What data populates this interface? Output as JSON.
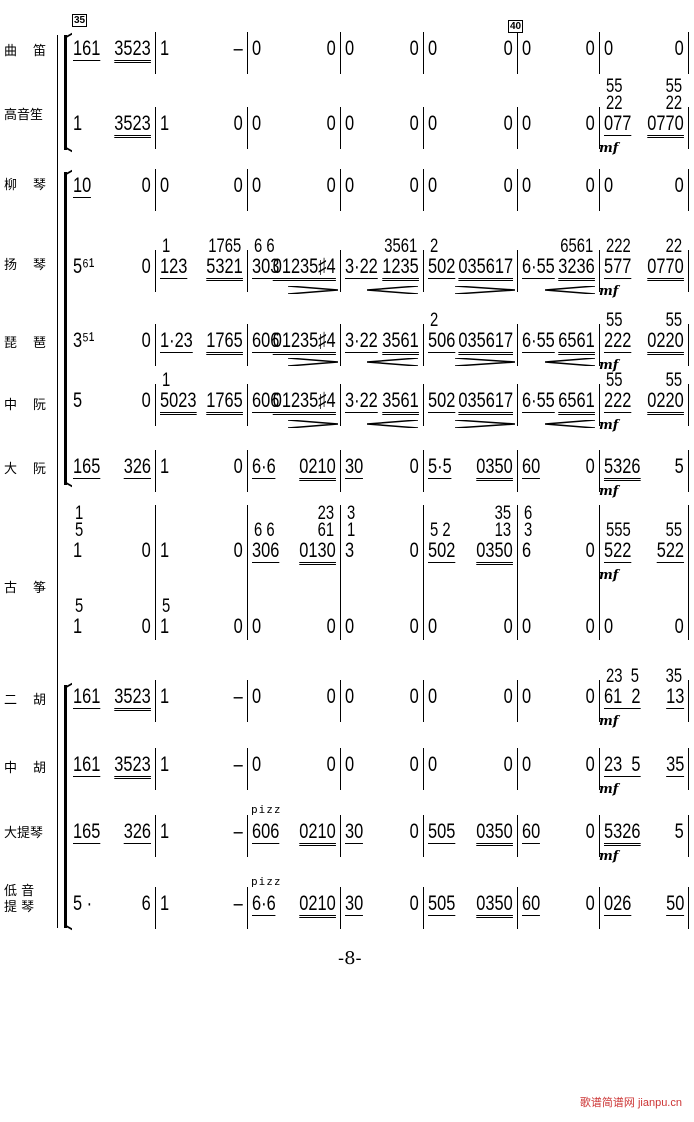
{
  "rehearsal_marks": [
    "35",
    "40"
  ],
  "page_number": "-8-",
  "watermark": {
    "cn": "歌谱简谱网",
    "url": "jianpu.cn"
  },
  "dynamic": "mf",
  "pizz": "pizz",
  "rows": [
    {
      "label": [
        "曲",
        "笛"
      ],
      "measures": [
        [
          "161",
          "3523"
        ],
        [
          "1",
          "–"
        ],
        [
          "0",
          "0"
        ],
        [
          "0",
          "0"
        ],
        [
          "0",
          "0"
        ],
        [
          "0",
          "0"
        ],
        [
          "0",
          "0"
        ]
      ]
    },
    {
      "label": [
        "高音笙"
      ],
      "measures": [
        [
          "1",
          "3523"
        ],
        [
          "1",
          "0"
        ],
        [
          "0",
          "0"
        ],
        [
          "0",
          "0"
        ],
        [
          "0",
          "0"
        ],
        [
          "0",
          "0"
        ],
        [
          "077",
          "0770"
        ]
      ],
      "upper": {
        "6": [
          "55\n22",
          "55\n22"
        ]
      },
      "mf": [
        6
      ]
    },
    {
      "label": [
        "柳",
        "琴"
      ],
      "measures": [
        [
          "10",
          "0"
        ],
        [
          "0",
          "0"
        ],
        [
          "0",
          "0"
        ],
        [
          "0",
          "0"
        ],
        [
          "0",
          "0"
        ],
        [
          "0",
          "0"
        ],
        [
          "0",
          "0"
        ]
      ]
    },
    {
      "label": [
        "扬",
        "琴"
      ],
      "measures": [
        [
          "5⁶¹",
          "0"
        ],
        [
          "123",
          "5321"
        ],
        [
          "303",
          "01235♯4"
        ],
        [
          "3·22",
          "1235"
        ],
        [
          "502",
          "035617"
        ],
        [
          "6·55",
          "3236"
        ],
        [
          "577",
          "0770"
        ]
      ],
      "upper": {
        "1": [
          "1",
          "1765"
        ],
        "2": [
          "6 6",
          ""
        ],
        "3": [
          "",
          "3561"
        ],
        "4": [
          "2",
          ""
        ],
        "5": [
          "",
          "6561"
        ],
        "6": [
          "222",
          "22"
        ]
      },
      "mf": [
        6
      ]
    },
    {
      "label": [
        "琵",
        "琶"
      ],
      "measures": [
        [
          "3⁵¹",
          "0"
        ],
        [
          "1·23",
          "1765"
        ],
        [
          "606",
          "01235♯4"
        ],
        [
          "3·22",
          "3561"
        ],
        [
          "506",
          "035617"
        ],
        [
          "6·55",
          "6561"
        ],
        [
          "222",
          "0220"
        ]
      ],
      "upper": {
        "4": [
          "2",
          ""
        ],
        "6": [
          "55",
          "55"
        ]
      },
      "mf": [
        6
      ]
    },
    {
      "label": [
        "中",
        "阮"
      ],
      "measures": [
        [
          "5",
          "0"
        ],
        [
          "5023",
          "1765"
        ],
        [
          "606",
          "01235♯4"
        ],
        [
          "3·22",
          "3561"
        ],
        [
          "502",
          "035617"
        ],
        [
          "6·55",
          "6561"
        ],
        [
          "222",
          "0220"
        ]
      ],
      "upper": {
        "1": [
          "1",
          ""
        ],
        "6": [
          "55",
          "55"
        ]
      },
      "mf": [
        6
      ]
    },
    {
      "label": [
        "大",
        "阮"
      ],
      "measures": [
        [
          "165",
          "326"
        ],
        [
          "1",
          "0"
        ],
        [
          "6·6",
          "0210"
        ],
        [
          "30",
          "0"
        ],
        [
          "5·5",
          "0350"
        ],
        [
          "60",
          "0"
        ],
        [
          "5326",
          "5"
        ]
      ],
      "mf": [
        6
      ]
    },
    {
      "label": [
        "古",
        "筝"
      ],
      "measures": [
        [
          "1",
          "0"
        ],
        [
          "1",
          "0"
        ],
        [
          "306",
          "0130"
        ],
        [
          "3",
          "0"
        ],
        [
          "502",
          "0350"
        ],
        [
          "6",
          "0"
        ],
        [
          "522",
          "522"
        ]
      ],
      "upper": {
        "0": [
          "1\n5",
          ""
        ],
        "2": [
          "6 6",
          "23\n61"
        ],
        "3": [
          "3\n1",
          ""
        ],
        "4": [
          "5 2",
          "35\n13"
        ],
        "5": [
          "6\n3",
          ""
        ],
        "6": [
          "555",
          "55"
        ]
      },
      "mf": [
        6
      ]
    },
    {
      "label": [],
      "measures": [
        [
          "1",
          "0"
        ],
        [
          "1",
          "0"
        ],
        [
          "0",
          "0"
        ],
        [
          "0",
          "0"
        ],
        [
          "0",
          "0"
        ],
        [
          "0",
          "0"
        ],
        [
          "0",
          "0"
        ]
      ],
      "upper": {
        "0": [
          "5",
          ""
        ],
        "1": [
          "5",
          ""
        ]
      }
    },
    {
      "label": [
        "二",
        "胡"
      ],
      "measures": [
        [
          "161",
          "3523"
        ],
        [
          "1",
          "–"
        ],
        [
          "0",
          "0"
        ],
        [
          "0",
          "0"
        ],
        [
          "0",
          "0"
        ],
        [
          "0",
          "0"
        ],
        [
          "61  2",
          "13"
        ]
      ],
      "upper": {
        "6": [
          "23  5",
          "35"
        ]
      },
      "mf": [
        6
      ]
    },
    {
      "label": [
        "中",
        "胡"
      ],
      "measures": [
        [
          "161",
          "3523"
        ],
        [
          "1",
          "–"
        ],
        [
          "0",
          "0"
        ],
        [
          "0",
          "0"
        ],
        [
          "0",
          "0"
        ],
        [
          "0",
          "0"
        ],
        [
          "23  5",
          "35"
        ]
      ],
      "mf": [
        6
      ]
    },
    {
      "label": [
        "大提琴"
      ],
      "measures": [
        [
          "165",
          "326"
        ],
        [
          "1",
          "–"
        ],
        [
          "606",
          "0210"
        ],
        [
          "30",
          "0"
        ],
        [
          "505",
          "0350"
        ],
        [
          "60",
          "0"
        ],
        [
          "5326",
          "5"
        ]
      ],
      "pizz_at": [
        2
      ],
      "mf": [
        6
      ]
    },
    {
      "label": [
        "低 音",
        "提 琴"
      ],
      "measures": [
        [
          "5 ·",
          "6"
        ],
        [
          "1",
          "–"
        ],
        [
          "6·6",
          "0210"
        ],
        [
          "30",
          "0"
        ],
        [
          "505",
          "0350"
        ],
        [
          "60",
          "0"
        ],
        [
          "026",
          "50"
        ]
      ],
      "pizz_at": [
        2
      ]
    }
  ]
}
